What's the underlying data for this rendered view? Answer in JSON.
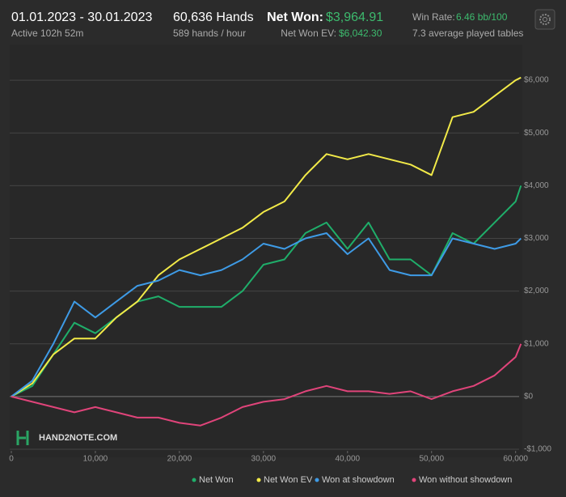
{
  "header": {
    "date_range": "01.01.2023 - 30.01.2023",
    "active": "Active 102h 52m",
    "hands": "60,636 Hands",
    "hands_per_hour": "589 hands / hour",
    "net_won_label": "Net Won:",
    "net_won": "$3,964.91",
    "net_won_ev_label": "Net Won  EV:",
    "net_won_ev": "$6,042.30",
    "win_rate_label": "Win Rate:",
    "win_rate": "6.46 bb/100",
    "tables": "7.3 average played tables"
  },
  "logo": "HAND2NOTE.COM",
  "chart_data": {
    "type": "line",
    "x": [
      0,
      2500,
      5000,
      7500,
      10000,
      12500,
      15000,
      17500,
      20000,
      22500,
      25000,
      27500,
      30000,
      32500,
      35000,
      37500,
      40000,
      42500,
      45000,
      47500,
      50000,
      52500,
      55000,
      57500,
      60000,
      60636
    ],
    "series": [
      {
        "name": "Net Won",
        "color": "#1fae6a",
        "values": [
          0,
          200,
          800,
          1400,
          1200,
          1500,
          1800,
          1900,
          1700,
          1700,
          1700,
          2000,
          2500,
          2600,
          3100,
          3300,
          2800,
          3300,
          2600,
          2600,
          2300,
          3100,
          2900,
          3300,
          3700,
          4000
        ]
      },
      {
        "name": "Net Won  EV",
        "color": "#f2ea48",
        "values": [
          0,
          250,
          800,
          1100,
          1100,
          1500,
          1800,
          2300,
          2600,
          2800,
          3000,
          3200,
          3500,
          3700,
          4200,
          4600,
          4500,
          4600,
          4500,
          4400,
          4200,
          5300,
          5400,
          5700,
          6000,
          6050
        ]
      },
      {
        "name": "Won at showdown",
        "color": "#3e9be6",
        "values": [
          0,
          300,
          1000,
          1800,
          1500,
          1800,
          2100,
          2200,
          2400,
          2300,
          2400,
          2600,
          2900,
          2800,
          3000,
          3100,
          2700,
          3000,
          2400,
          2300,
          2300,
          3000,
          2900,
          2800,
          2900,
          3000
        ]
      },
      {
        "name": "Won without showdown",
        "color": "#e0447a",
        "values": [
          0,
          -100,
          -200,
          -300,
          -200,
          -300,
          -400,
          -400,
          -500,
          -550,
          -400,
          -200,
          -100,
          -50,
          100,
          200,
          100,
          100,
          50,
          100,
          -50,
          100,
          200,
          400,
          750,
          1000
        ]
      }
    ],
    "xlim": [
      0,
      60800
    ],
    "ylim": [
      -1000,
      6600
    ],
    "xticks": [
      0,
      {
        "value": 10000,
        "label": "10,000"
      },
      {
        "value": 20000,
        "label": "20,000"
      },
      {
        "value": 30000,
        "label": "30,000"
      },
      {
        "value": 40000,
        "label": "40,000"
      },
      {
        "value": 50000,
        "label": "50,000"
      },
      {
        "value": 60000,
        "label": "60,000"
      }
    ],
    "yticks": [
      {
        "value": -1000,
        "label": "-$1,000"
      },
      {
        "value": 0,
        "label": "$0"
      },
      {
        "value": 1000,
        "label": "$1,000"
      },
      {
        "value": 2000,
        "label": "$2,000"
      },
      {
        "value": 3000,
        "label": "$3,000"
      },
      {
        "value": 4000,
        "label": "$4,000"
      },
      {
        "value": 5000,
        "label": "$5,000"
      },
      {
        "value": 6000,
        "label": "$6,000"
      }
    ],
    "grid": true
  }
}
